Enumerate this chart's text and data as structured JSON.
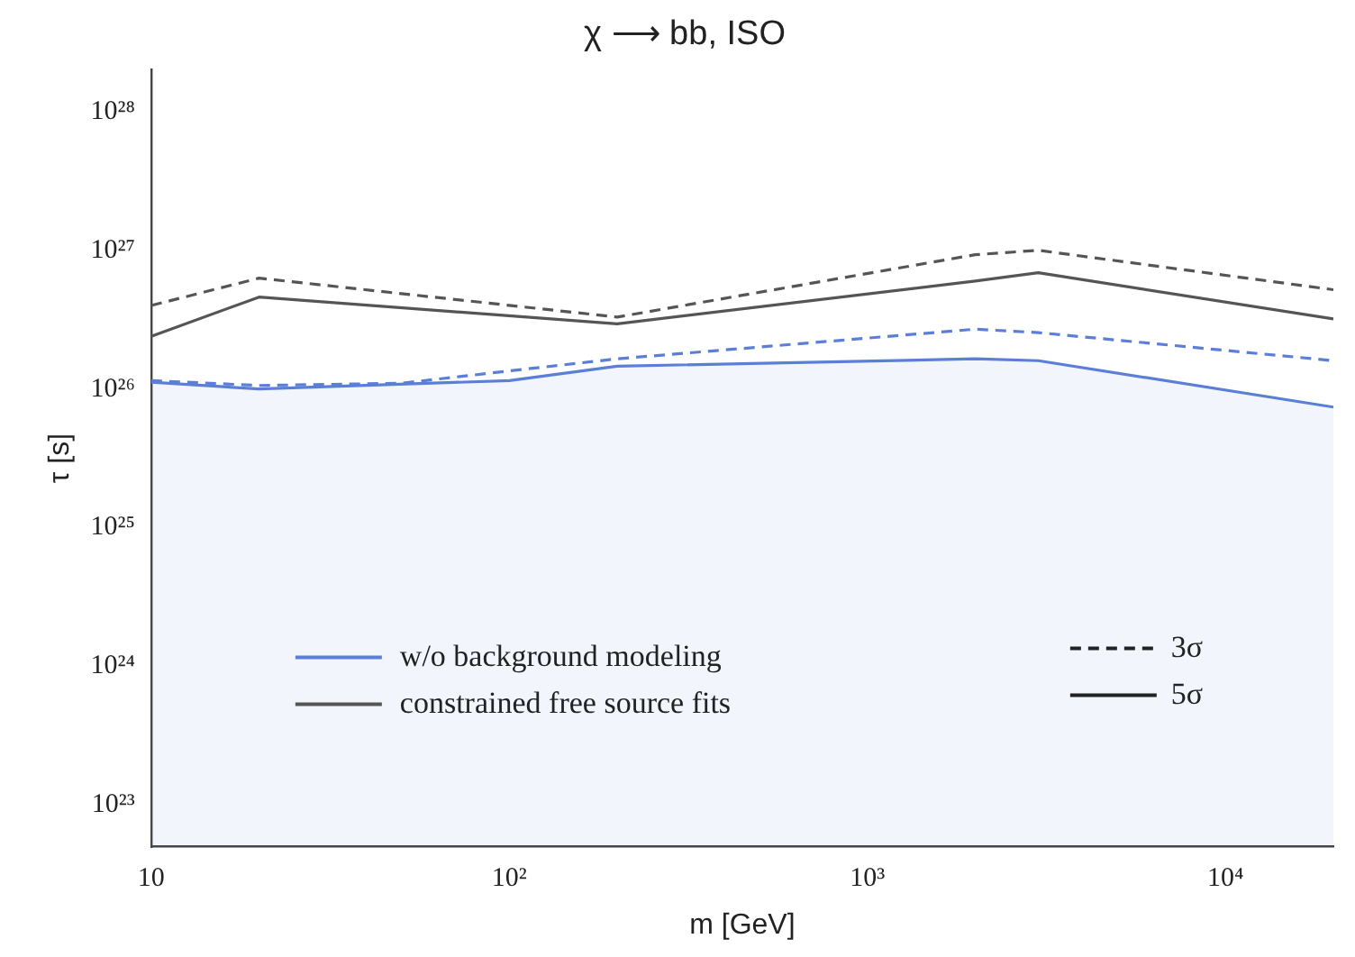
{
  "chart_data": {
    "type": "line",
    "title": "χ ⟶ bb, ISO",
    "xlabel": "m [GeV]",
    "ylabel": "τ [s]",
    "log": "xy",
    "grid": false,
    "legend": "bottom left",
    "marker": "none",
    "xlim": [
      10,
      20000
    ],
    "ylim": [
      5e+22,
      2e+28
    ],
    "xticks": [
      {
        "value": 10,
        "label": "10"
      },
      {
        "value": 100,
        "label": "10²"
      },
      {
        "value": 1000,
        "label": "10³"
      },
      {
        "value": 10000,
        "label": "10⁴"
      }
    ],
    "yticks": [
      {
        "value": 1e+23,
        "label": "10²³"
      },
      {
        "value": 1e+24,
        "label": "10²⁴"
      },
      {
        "value": 1e+25,
        "label": "10²⁵"
      },
      {
        "value": 1e+26,
        "label": "10²⁶"
      },
      {
        "value": 1e+27,
        "label": "10²⁷"
      },
      {
        "value": 1e+28,
        "label": "10²⁸"
      }
    ],
    "series": [
      {
        "type": "area",
        "name": "w/o background modeling",
        "color": "#5b7fd6",
        "line_style": "solid",
        "x": [
          10,
          20,
          100,
          200,
          2000,
          3000,
          20000
        ],
        "values": [
          1.12e+26,
          1e+26,
          1.15e+26,
          1.46e+26,
          1.65e+26,
          1.6e+26,
          7.4e+25
        ]
      },
      {
        "color": "#5b7fd6",
        "line_style": "dashed",
        "x": [
          10,
          20,
          50,
          100,
          200,
          2000,
          3000,
          20000
        ],
        "values": [
          1.15e+26,
          1.06e+26,
          1.1e+26,
          1.35e+26,
          1.65e+26,
          2.7e+26,
          2.55e+26,
          1.6e+26
        ]
      },
      {
        "name": "constrained free source fits",
        "color": "#555555",
        "line_style": "solid",
        "x": [
          10,
          20,
          200,
          2000,
          3000,
          20000
        ],
        "values": [
          2.4e+26,
          4.6e+26,
          2.95e+26,
          6e+26,
          6.9e+26,
          3.2e+26
        ]
      },
      {
        "color": "#555555",
        "line_style": "dashed",
        "x": [
          10,
          20,
          200,
          2000,
          3000,
          20000
        ],
        "values": [
          4e+26,
          6.3e+26,
          3.3e+26,
          9.3e+26,
          1e+27,
          5.2e+26
        ]
      }
    ],
    "annotations": [
      "3σ",
      "5σ"
    ]
  }
}
